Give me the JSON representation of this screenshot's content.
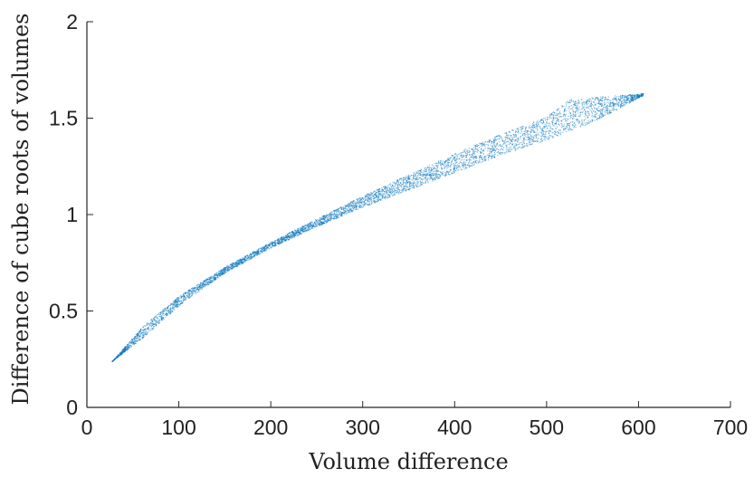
{
  "chart_data": {
    "type": "scatter",
    "title": "",
    "xlabel": "Volume difference",
    "ylabel": "Difference of cube roots of volumes",
    "xlim": [
      0,
      700
    ],
    "ylim": [
      0,
      2
    ],
    "xticks": [
      0,
      100,
      200,
      300,
      400,
      500,
      600,
      700
    ],
    "xtick_labels": [
      "0",
      "100",
      "200",
      "300",
      "400",
      "500",
      "600",
      "700"
    ],
    "yticks": [
      0,
      0.5,
      1,
      1.5,
      2
    ],
    "ytick_labels": [
      "0",
      "0.5",
      "1",
      "1.5",
      "2"
    ],
    "grid": false,
    "box": false,
    "marker_color": "#0072BD",
    "series": [
      {
        "marker": "point",
        "region_description": "dense band of points following an increasing concave curve",
        "x_range": [
          27,
          605
        ],
        "band_upper": [
          [
            27,
            0.24
          ],
          [
            60,
            0.42
          ],
          [
            100,
            0.58
          ],
          [
            150,
            0.73
          ],
          [
            200,
            0.86
          ],
          [
            250,
            0.98
          ],
          [
            300,
            1.1
          ],
          [
            350,
            1.21
          ],
          [
            400,
            1.32
          ],
          [
            450,
            1.42
          ],
          [
            500,
            1.51
          ],
          [
            525,
            1.6
          ],
          [
            605,
            1.63
          ]
        ],
        "band_lower": [
          [
            27,
            0.24
          ],
          [
            60,
            0.36
          ],
          [
            100,
            0.53
          ],
          [
            150,
            0.7
          ],
          [
            200,
            0.83
          ],
          [
            250,
            0.94
          ],
          [
            300,
            1.04
          ],
          [
            350,
            1.13
          ],
          [
            400,
            1.22
          ],
          [
            450,
            1.31
          ],
          [
            500,
            1.39
          ],
          [
            550,
            1.48
          ],
          [
            605,
            1.62
          ]
        ]
      }
    ]
  }
}
